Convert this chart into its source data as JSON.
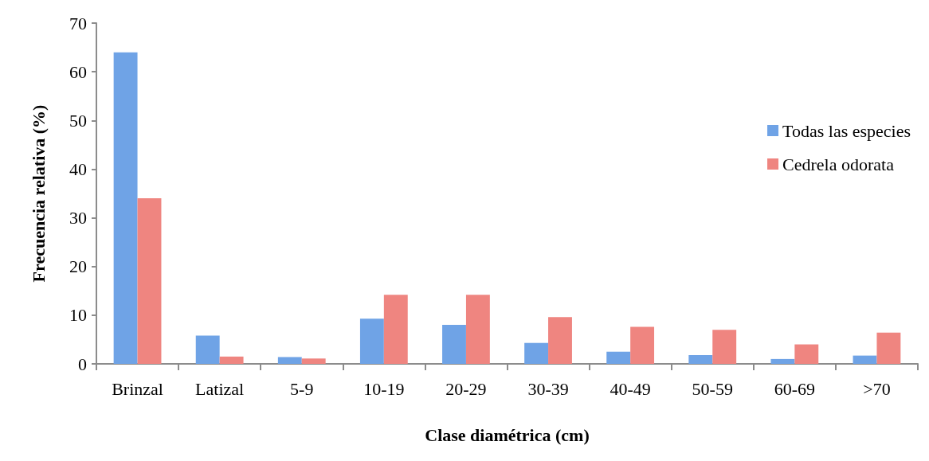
{
  "chart_data": {
    "type": "bar",
    "xlabel": "Clase diamétrica (cm)",
    "ylabel": "Frecuencia relativa (%)",
    "categories": [
      "Brinzal",
      "Latizal",
      "5-9",
      "10-19",
      "20-29",
      "30-39",
      "40-49",
      "50-59",
      "60-69",
      ">70"
    ],
    "series": [
      {
        "name": "Todas las especies",
        "color": "#6fa3e6",
        "values": [
          64,
          5.8,
          1.4,
          9.3,
          8.0,
          4.3,
          2.5,
          1.8,
          1.0,
          1.7
        ]
      },
      {
        "name": "Cedrela odorata",
        "color": "#ef8580",
        "values": [
          34,
          1.5,
          1.1,
          14.2,
          14.2,
          9.6,
          7.6,
          7.0,
          4.0,
          6.4
        ]
      }
    ],
    "ylim": [
      0,
      70
    ],
    "yticks": [
      0,
      10,
      20,
      30,
      40,
      50,
      60,
      70
    ],
    "grid": false,
    "legend": "right"
  }
}
